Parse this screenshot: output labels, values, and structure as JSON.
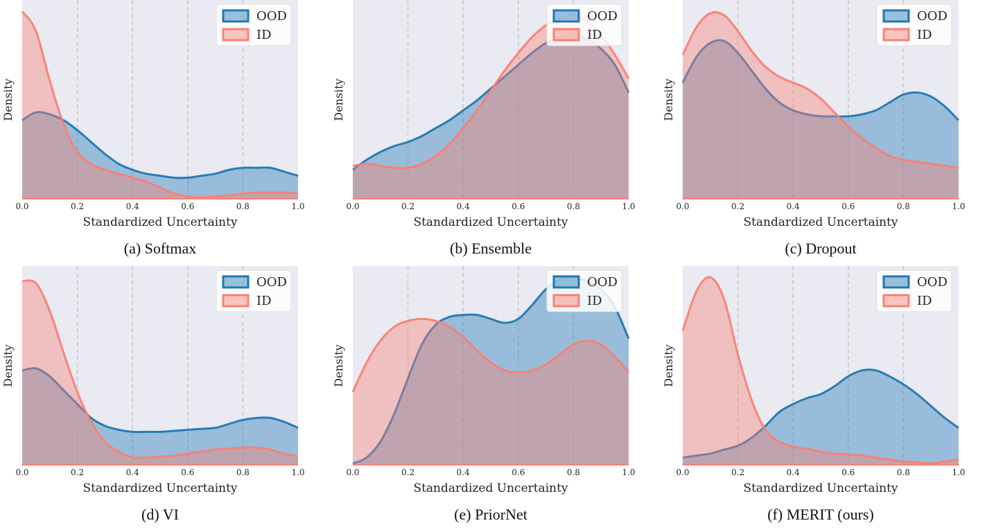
{
  "figure": {
    "colors": {
      "ood_line": "#1f77b4",
      "ood_fill": "#1f77b4",
      "id_line": "#fa8072",
      "id_fill": "#fa8072",
      "background": "#eaeaf2",
      "grid": "#c8c8c8"
    },
    "xticks": [
      "0.0",
      "0.2",
      "0.4",
      "0.6",
      "0.8",
      "1.0"
    ],
    "xlabel": "Standardized Uncertainty",
    "ylabel": "Density",
    "legend": {
      "ood": "OOD",
      "id": "ID"
    }
  },
  "chart_data": [
    {
      "type": "area",
      "caption": "(a) Softmax",
      "xlabel": "Standardized Uncertainty",
      "ylabel": "Density",
      "xlim": [
        0,
        1
      ],
      "grid": "vertical dashed",
      "legend_position": "top-right",
      "series": [
        {
          "name": "OOD",
          "x": [
            0,
            0.05,
            0.1,
            0.15,
            0.2,
            0.25,
            0.3,
            0.35,
            0.4,
            0.45,
            0.5,
            0.55,
            0.6,
            0.65,
            0.7,
            0.75,
            0.8,
            0.85,
            0.9,
            0.95,
            1.0
          ],
          "y": [
            0.4,
            0.44,
            0.43,
            0.4,
            0.35,
            0.29,
            0.23,
            0.18,
            0.15,
            0.13,
            0.12,
            0.11,
            0.11,
            0.12,
            0.13,
            0.15,
            0.16,
            0.16,
            0.16,
            0.14,
            0.12
          ]
        },
        {
          "name": "ID",
          "x": [
            0,
            0.05,
            0.1,
            0.15,
            0.2,
            0.25,
            0.3,
            0.35,
            0.4,
            0.45,
            0.5,
            0.55,
            0.6,
            0.65,
            0.7,
            0.75,
            0.8,
            0.85,
            0.9,
            0.95,
            1.0
          ],
          "y": [
            0.95,
            0.85,
            0.6,
            0.38,
            0.24,
            0.18,
            0.15,
            0.13,
            0.11,
            0.09,
            0.06,
            0.03,
            0.015,
            0.01,
            0.015,
            0.02,
            0.03,
            0.035,
            0.035,
            0.035,
            0.03
          ]
        }
      ]
    },
    {
      "type": "area",
      "caption": "(b) Ensemble",
      "xlabel": "Standardized Uncertainty",
      "ylabel": "Density",
      "xlim": [
        0,
        1
      ],
      "grid": "vertical dashed",
      "legend_position": "top-right",
      "series": [
        {
          "name": "OOD",
          "x": [
            0,
            0.05,
            0.1,
            0.15,
            0.2,
            0.25,
            0.3,
            0.35,
            0.4,
            0.45,
            0.5,
            0.55,
            0.6,
            0.65,
            0.7,
            0.75,
            0.8,
            0.85,
            0.9,
            0.95,
            1.0
          ],
          "y": [
            0.15,
            0.2,
            0.24,
            0.27,
            0.29,
            0.32,
            0.36,
            0.4,
            0.45,
            0.5,
            0.56,
            0.62,
            0.68,
            0.74,
            0.79,
            0.82,
            0.83,
            0.81,
            0.76,
            0.68,
            0.54
          ]
        },
        {
          "name": "ID",
          "x": [
            0,
            0.05,
            0.1,
            0.15,
            0.2,
            0.25,
            0.3,
            0.35,
            0.4,
            0.45,
            0.5,
            0.55,
            0.6,
            0.65,
            0.7,
            0.75,
            0.8,
            0.85,
            0.9,
            0.95,
            1.0
          ],
          "y": [
            0.17,
            0.18,
            0.17,
            0.16,
            0.16,
            0.18,
            0.22,
            0.28,
            0.36,
            0.45,
            0.55,
            0.65,
            0.74,
            0.82,
            0.88,
            0.92,
            0.93,
            0.9,
            0.83,
            0.73,
            0.61
          ]
        }
      ]
    },
    {
      "type": "area",
      "caption": "(c) Dropout",
      "xlabel": "Standardized Uncertainty",
      "ylabel": "Density",
      "xlim": [
        0,
        1
      ],
      "grid": "vertical dashed",
      "legend_position": "top-right",
      "series": [
        {
          "name": "OOD",
          "x": [
            0,
            0.05,
            0.1,
            0.15,
            0.2,
            0.25,
            0.3,
            0.35,
            0.4,
            0.45,
            0.5,
            0.55,
            0.6,
            0.65,
            0.7,
            0.75,
            0.8,
            0.85,
            0.9,
            0.95,
            1.0
          ],
          "y": [
            0.59,
            0.72,
            0.79,
            0.8,
            0.74,
            0.65,
            0.56,
            0.49,
            0.45,
            0.43,
            0.42,
            0.42,
            0.42,
            0.43,
            0.45,
            0.49,
            0.53,
            0.54,
            0.52,
            0.47,
            0.4
          ]
        },
        {
          "name": "ID",
          "x": [
            0,
            0.05,
            0.1,
            0.15,
            0.2,
            0.25,
            0.3,
            0.35,
            0.4,
            0.45,
            0.5,
            0.55,
            0.6,
            0.65,
            0.7,
            0.75,
            0.8,
            0.85,
            0.9,
            0.95,
            1.0
          ],
          "y": [
            0.73,
            0.87,
            0.94,
            0.93,
            0.85,
            0.75,
            0.67,
            0.62,
            0.59,
            0.56,
            0.51,
            0.44,
            0.37,
            0.31,
            0.26,
            0.22,
            0.2,
            0.19,
            0.18,
            0.17,
            0.16
          ]
        }
      ]
    },
    {
      "type": "area",
      "caption": "(d) VI",
      "xlabel": "Standardized Uncertainty",
      "ylabel": "Density",
      "xlim": [
        0,
        1
      ],
      "grid": "vertical dashed",
      "legend_position": "top-right",
      "series": [
        {
          "name": "OOD",
          "x": [
            0,
            0.05,
            0.1,
            0.15,
            0.2,
            0.25,
            0.3,
            0.35,
            0.4,
            0.45,
            0.5,
            0.55,
            0.6,
            0.65,
            0.7,
            0.75,
            0.8,
            0.85,
            0.9,
            0.95,
            1.0
          ],
          "y": [
            0.48,
            0.49,
            0.45,
            0.38,
            0.31,
            0.24,
            0.2,
            0.18,
            0.17,
            0.17,
            0.17,
            0.175,
            0.18,
            0.185,
            0.19,
            0.21,
            0.23,
            0.24,
            0.24,
            0.22,
            0.19
          ]
        },
        {
          "name": "ID",
          "x": [
            0,
            0.05,
            0.1,
            0.15,
            0.2,
            0.25,
            0.3,
            0.35,
            0.4,
            0.45,
            0.5,
            0.55,
            0.6,
            0.65,
            0.7,
            0.75,
            0.8,
            0.85,
            0.9,
            0.95,
            1.0
          ],
          "y": [
            0.93,
            0.92,
            0.78,
            0.57,
            0.37,
            0.22,
            0.12,
            0.07,
            0.04,
            0.04,
            0.045,
            0.05,
            0.06,
            0.07,
            0.08,
            0.085,
            0.09,
            0.09,
            0.08,
            0.06,
            0.045
          ]
        }
      ]
    },
    {
      "type": "area",
      "caption": "(e) PriorNet",
      "xlabel": "Standardized Uncertainty",
      "ylabel": "Density",
      "xlim": [
        0,
        1
      ],
      "grid": "vertical dashed",
      "legend_position": "top-right",
      "series": [
        {
          "name": "OOD",
          "x": [
            0,
            0.05,
            0.1,
            0.15,
            0.2,
            0.25,
            0.3,
            0.35,
            0.4,
            0.45,
            0.5,
            0.55,
            0.6,
            0.65,
            0.7,
            0.75,
            0.8,
            0.85,
            0.9,
            0.95,
            1.0
          ],
          "y": [
            0.01,
            0.04,
            0.12,
            0.26,
            0.44,
            0.61,
            0.71,
            0.75,
            0.76,
            0.76,
            0.74,
            0.72,
            0.74,
            0.81,
            0.89,
            0.94,
            0.95,
            0.93,
            0.89,
            0.8,
            0.64
          ]
        },
        {
          "name": "ID",
          "x": [
            0,
            0.05,
            0.1,
            0.15,
            0.2,
            0.25,
            0.3,
            0.35,
            0.4,
            0.45,
            0.5,
            0.55,
            0.6,
            0.65,
            0.7,
            0.75,
            0.8,
            0.85,
            0.9,
            0.95,
            1.0
          ],
          "y": [
            0.37,
            0.52,
            0.63,
            0.7,
            0.73,
            0.74,
            0.73,
            0.7,
            0.65,
            0.58,
            0.52,
            0.48,
            0.47,
            0.48,
            0.51,
            0.56,
            0.61,
            0.63,
            0.61,
            0.55,
            0.47
          ]
        }
      ]
    },
    {
      "type": "area",
      "caption": "(f) MERIT (ours)",
      "xlabel": "Standardized Uncertainty",
      "ylabel": "Density",
      "xlim": [
        0,
        1
      ],
      "grid": "vertical dashed",
      "legend_position": "top-right",
      "series": [
        {
          "name": "OOD",
          "x": [
            0,
            0.05,
            0.1,
            0.15,
            0.2,
            0.25,
            0.3,
            0.35,
            0.4,
            0.45,
            0.5,
            0.55,
            0.6,
            0.65,
            0.7,
            0.75,
            0.8,
            0.85,
            0.9,
            0.95,
            1.0
          ],
          "y": [
            0.04,
            0.05,
            0.06,
            0.08,
            0.1,
            0.14,
            0.2,
            0.27,
            0.31,
            0.34,
            0.36,
            0.4,
            0.45,
            0.48,
            0.48,
            0.45,
            0.41,
            0.36,
            0.3,
            0.24,
            0.19
          ]
        },
        {
          "name": "ID",
          "x": [
            0,
            0.05,
            0.1,
            0.15,
            0.2,
            0.25,
            0.3,
            0.35,
            0.4,
            0.45,
            0.5,
            0.55,
            0.6,
            0.65,
            0.7,
            0.75,
            0.8,
            0.85,
            0.9,
            0.95,
            1.0
          ],
          "y": [
            0.68,
            0.88,
            0.95,
            0.84,
            0.56,
            0.33,
            0.18,
            0.12,
            0.095,
            0.085,
            0.07,
            0.06,
            0.055,
            0.05,
            0.04,
            0.03,
            0.02,
            0.015,
            0.01,
            0.02,
            0.03
          ]
        }
      ]
    }
  ]
}
